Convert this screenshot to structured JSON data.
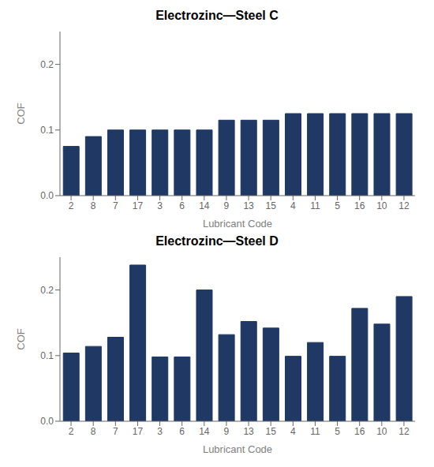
{
  "chart_data": [
    {
      "type": "bar",
      "title": "Electrozinc—Steel C",
      "xlabel": "Lubricant Code",
      "ylabel": "COF",
      "categories": [
        "2",
        "8",
        "7",
        "17",
        "3",
        "6",
        "14",
        "9",
        "13",
        "15",
        "4",
        "11",
        "5",
        "16",
        "10",
        "12"
      ],
      "values": [
        0.075,
        0.09,
        0.1,
        0.1,
        0.1,
        0.1,
        0.1,
        0.115,
        0.115,
        0.115,
        0.125,
        0.125,
        0.125,
        0.125,
        0.125,
        0.125
      ],
      "color": "#1f3864",
      "ylim": [
        0,
        0.25
      ],
      "yticks": [
        {
          "value": 0,
          "label": "0.0"
        },
        0.1,
        0.2
      ],
      "grid": false
    },
    {
      "type": "bar",
      "title": "Electrozinc—Steel D",
      "xlabel": "Lubricant Code",
      "ylabel": "COF",
      "categories": [
        "2",
        "8",
        "7",
        "17",
        "3",
        "6",
        "14",
        "9",
        "13",
        "15",
        "4",
        "11",
        "5",
        "16",
        "10",
        "12"
      ],
      "values": [
        0.104,
        0.114,
        0.128,
        0.238,
        0.098,
        0.098,
        0.2,
        0.132,
        0.152,
        0.142,
        0.099,
        0.12,
        0.099,
        0.172,
        0.148,
        0.19
      ],
      "color": "#1f3864",
      "ylim": [
        0,
        0.25
      ],
      "yticks": [
        {
          "value": 0,
          "label": "0.0"
        },
        0.1,
        0.2
      ],
      "grid": false
    }
  ]
}
